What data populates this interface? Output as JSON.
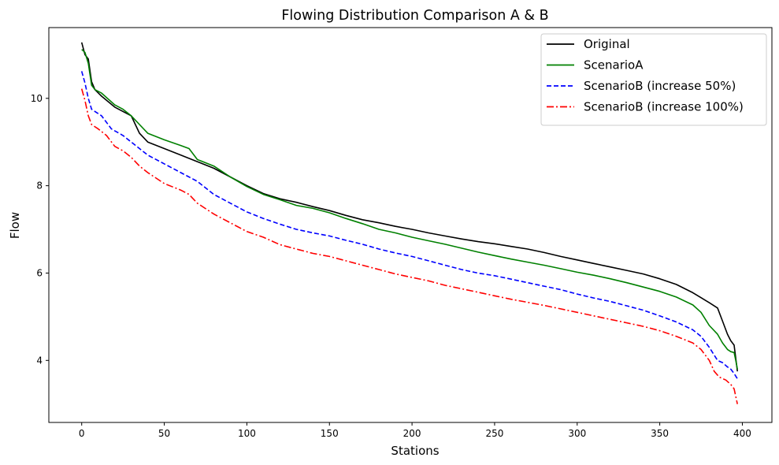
{
  "chart_data": {
    "type": "line",
    "title": "Flowing Distribution Comparison A & B",
    "xlabel": "Stations",
    "ylabel": "Flow",
    "xlim": [
      -19.9,
      417.9
    ],
    "ylim": [
      2.58,
      11.62
    ],
    "xticks": [
      0,
      50,
      100,
      150,
      200,
      250,
      300,
      350,
      400
    ],
    "yticks": [
      4,
      6,
      8,
      10
    ],
    "grid": false,
    "legend_position": "top-right",
    "series": [
      {
        "name": "Original",
        "color": "#000000",
        "style": "solid",
        "points": [
          [
            0,
            11.28
          ],
          [
            2,
            11.0
          ],
          [
            4,
            10.9
          ],
          [
            6,
            10.38
          ],
          [
            8,
            10.2
          ],
          [
            12,
            10.05
          ],
          [
            20,
            9.8
          ],
          [
            25,
            9.7
          ],
          [
            30,
            9.6
          ],
          [
            35,
            9.2
          ],
          [
            40,
            9.0
          ],
          [
            50,
            8.85
          ],
          [
            60,
            8.7
          ],
          [
            70,
            8.55
          ],
          [
            80,
            8.4
          ],
          [
            90,
            8.2
          ],
          [
            100,
            8.0
          ],
          [
            110,
            7.82
          ],
          [
            120,
            7.7
          ],
          [
            130,
            7.62
          ],
          [
            140,
            7.52
          ],
          [
            150,
            7.43
          ],
          [
            160,
            7.32
          ],
          [
            170,
            7.22
          ],
          [
            180,
            7.15
          ],
          [
            190,
            7.07
          ],
          [
            200,
            7.0
          ],
          [
            210,
            6.92
          ],
          [
            220,
            6.85
          ],
          [
            230,
            6.78
          ],
          [
            240,
            6.72
          ],
          [
            250,
            6.67
          ],
          [
            260,
            6.61
          ],
          [
            270,
            6.55
          ],
          [
            280,
            6.47
          ],
          [
            290,
            6.38
          ],
          [
            300,
            6.3
          ],
          [
            310,
            6.22
          ],
          [
            320,
            6.14
          ],
          [
            330,
            6.06
          ],
          [
            340,
            5.98
          ],
          [
            350,
            5.87
          ],
          [
            360,
            5.74
          ],
          [
            370,
            5.55
          ],
          [
            380,
            5.32
          ],
          [
            385,
            5.2
          ],
          [
            388,
            4.9
          ],
          [
            391,
            4.6
          ],
          [
            393,
            4.45
          ],
          [
            395,
            4.35
          ],
          [
            396,
            4.05
          ],
          [
            397,
            3.75
          ]
        ]
      },
      {
        "name": "ScenarioA",
        "color": "#008000",
        "style": "solid",
        "points": [
          [
            0,
            11.12
          ],
          [
            2,
            11.05
          ],
          [
            4,
            10.8
          ],
          [
            6,
            10.3
          ],
          [
            8,
            10.2
          ],
          [
            12,
            10.12
          ],
          [
            20,
            9.85
          ],
          [
            25,
            9.75
          ],
          [
            30,
            9.6
          ],
          [
            35,
            9.4
          ],
          [
            40,
            9.2
          ],
          [
            50,
            9.05
          ],
          [
            60,
            8.92
          ],
          [
            65,
            8.85
          ],
          [
            70,
            8.6
          ],
          [
            80,
            8.45
          ],
          [
            90,
            8.2
          ],
          [
            100,
            7.98
          ],
          [
            110,
            7.8
          ],
          [
            120,
            7.68
          ],
          [
            130,
            7.55
          ],
          [
            140,
            7.48
          ],
          [
            150,
            7.38
          ],
          [
            160,
            7.25
          ],
          [
            170,
            7.13
          ],
          [
            180,
            7.0
          ],
          [
            190,
            6.92
          ],
          [
            200,
            6.82
          ],
          [
            210,
            6.74
          ],
          [
            220,
            6.66
          ],
          [
            230,
            6.57
          ],
          [
            240,
            6.48
          ],
          [
            250,
            6.4
          ],
          [
            260,
            6.32
          ],
          [
            270,
            6.25
          ],
          [
            280,
            6.18
          ],
          [
            290,
            6.1
          ],
          [
            300,
            6.02
          ],
          [
            310,
            5.95
          ],
          [
            320,
            5.87
          ],
          [
            330,
            5.78
          ],
          [
            340,
            5.68
          ],
          [
            350,
            5.58
          ],
          [
            360,
            5.45
          ],
          [
            370,
            5.27
          ],
          [
            375,
            5.1
          ],
          [
            380,
            4.8
          ],
          [
            385,
            4.6
          ],
          [
            388,
            4.4
          ],
          [
            391,
            4.25
          ],
          [
            393,
            4.2
          ],
          [
            395,
            4.18
          ],
          [
            396,
            4.0
          ],
          [
            397,
            3.8
          ]
        ]
      },
      {
        "name": "ScenarioB (increase 50%)",
        "color": "#0000ff",
        "style": "dashed",
        "points": [
          [
            0,
            10.62
          ],
          [
            2,
            10.35
          ],
          [
            4,
            10.0
          ],
          [
            6,
            9.75
          ],
          [
            8,
            9.7
          ],
          [
            12,
            9.6
          ],
          [
            18,
            9.3
          ],
          [
            25,
            9.15
          ],
          [
            30,
            9.0
          ],
          [
            35,
            8.85
          ],
          [
            40,
            8.7
          ],
          [
            50,
            8.5
          ],
          [
            60,
            8.3
          ],
          [
            70,
            8.1
          ],
          [
            75,
            7.95
          ],
          [
            80,
            7.8
          ],
          [
            90,
            7.6
          ],
          [
            100,
            7.4
          ],
          [
            110,
            7.25
          ],
          [
            120,
            7.12
          ],
          [
            130,
            7.0
          ],
          [
            140,
            6.92
          ],
          [
            150,
            6.85
          ],
          [
            160,
            6.75
          ],
          [
            170,
            6.66
          ],
          [
            180,
            6.55
          ],
          [
            190,
            6.46
          ],
          [
            200,
            6.38
          ],
          [
            210,
            6.28
          ],
          [
            220,
            6.18
          ],
          [
            230,
            6.08
          ],
          [
            240,
            6.0
          ],
          [
            250,
            5.94
          ],
          [
            260,
            5.86
          ],
          [
            270,
            5.78
          ],
          [
            280,
            5.7
          ],
          [
            290,
            5.62
          ],
          [
            300,
            5.52
          ],
          [
            310,
            5.43
          ],
          [
            320,
            5.35
          ],
          [
            330,
            5.25
          ],
          [
            340,
            5.15
          ],
          [
            350,
            5.02
          ],
          [
            360,
            4.88
          ],
          [
            370,
            4.7
          ],
          [
            375,
            4.55
          ],
          [
            380,
            4.3
          ],
          [
            385,
            4.0
          ],
          [
            388,
            3.95
          ],
          [
            391,
            3.85
          ],
          [
            393,
            3.8
          ],
          [
            395,
            3.7
          ],
          [
            397,
            3.58
          ]
        ]
      },
      {
        "name": "ScenarioB (increase 100%)",
        "color": "#ff0000",
        "style": "dashdot",
        "points": [
          [
            0,
            10.22
          ],
          [
            2,
            9.95
          ],
          [
            4,
            9.6
          ],
          [
            6,
            9.4
          ],
          [
            10,
            9.3
          ],
          [
            15,
            9.15
          ],
          [
            20,
            8.9
          ],
          [
            25,
            8.8
          ],
          [
            30,
            8.65
          ],
          [
            35,
            8.45
          ],
          [
            40,
            8.3
          ],
          [
            50,
            8.05
          ],
          [
            60,
            7.9
          ],
          [
            65,
            7.8
          ],
          [
            70,
            7.6
          ],
          [
            80,
            7.35
          ],
          [
            90,
            7.15
          ],
          [
            100,
            6.95
          ],
          [
            110,
            6.82
          ],
          [
            120,
            6.65
          ],
          [
            130,
            6.55
          ],
          [
            140,
            6.45
          ],
          [
            150,
            6.38
          ],
          [
            160,
            6.28
          ],
          [
            170,
            6.18
          ],
          [
            180,
            6.08
          ],
          [
            190,
            5.98
          ],
          [
            200,
            5.9
          ],
          [
            210,
            5.82
          ],
          [
            220,
            5.72
          ],
          [
            230,
            5.64
          ],
          [
            240,
            5.56
          ],
          [
            250,
            5.48
          ],
          [
            260,
            5.4
          ],
          [
            270,
            5.33
          ],
          [
            280,
            5.26
          ],
          [
            290,
            5.18
          ],
          [
            300,
            5.1
          ],
          [
            310,
            5.02
          ],
          [
            320,
            4.94
          ],
          [
            330,
            4.86
          ],
          [
            340,
            4.78
          ],
          [
            350,
            4.68
          ],
          [
            360,
            4.55
          ],
          [
            370,
            4.4
          ],
          [
            375,
            4.25
          ],
          [
            380,
            4.0
          ],
          [
            383,
            3.75
          ],
          [
            386,
            3.62
          ],
          [
            390,
            3.55
          ],
          [
            393,
            3.45
          ],
          [
            395,
            3.35
          ],
          [
            397,
            3.0
          ]
        ]
      }
    ]
  }
}
